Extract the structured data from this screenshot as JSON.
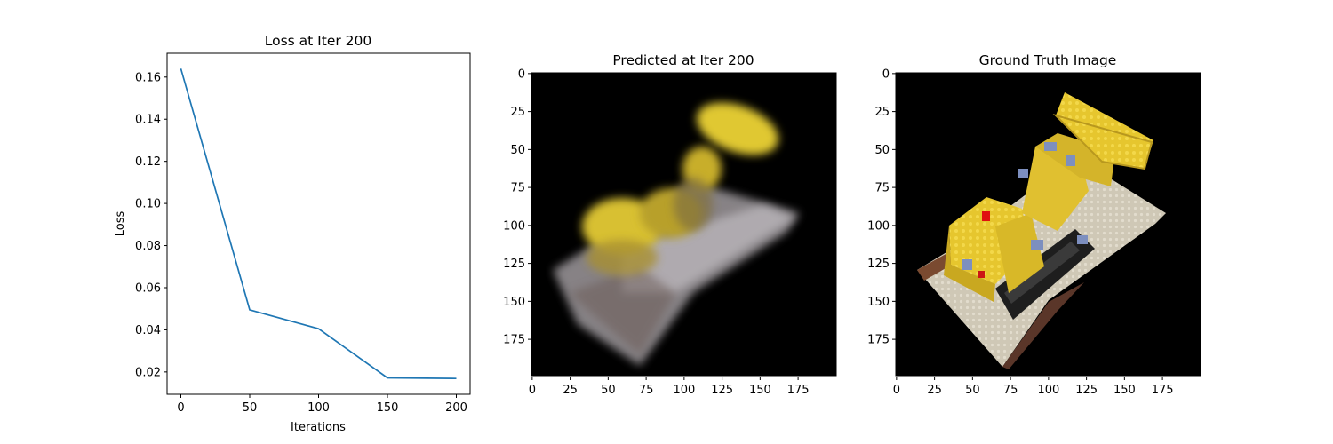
{
  "chart_data": [
    {
      "type": "line",
      "title": "Loss at Iter 200",
      "xlabel": "Iterations",
      "ylabel": "Loss",
      "x": [
        0,
        50,
        100,
        150,
        200
      ],
      "series": [
        {
          "values": [
            0.164,
            0.0495,
            0.0405,
            0.0172,
            0.0169
          ]
        }
      ],
      "xlim": [
        -10,
        210
      ],
      "ylim": [
        0.0094,
        0.1713
      ],
      "xticks": [
        "0",
        "50",
        "100",
        "150",
        "200"
      ],
      "yticks": [
        "0.02",
        "0.04",
        "0.06",
        "0.08",
        "0.10",
        "0.12",
        "0.14",
        "0.16"
      ],
      "line_color": "#1f77b4",
      "grid": false
    },
    {
      "type": "heatmap",
      "title": "Predicted at Iter 200",
      "description_visible": "blurry reconstruction of yellow bulldozer on grey baseplate, black background",
      "xlim": [
        0,
        200
      ],
      "ylim": [
        200,
        0
      ],
      "xticks": [
        "0",
        "25",
        "50",
        "75",
        "100",
        "125",
        "150",
        "175"
      ],
      "yticks": [
        "0",
        "25",
        "50",
        "75",
        "100",
        "125",
        "150",
        "175"
      ]
    },
    {
      "type": "heatmap",
      "title": "Ground Truth Image",
      "xlim": [
        0,
        200
      ],
      "ylim": [
        200,
        0
      ],
      "xticks": [
        "0",
        "25",
        "50",
        "75",
        "100",
        "125",
        "150",
        "175"
      ],
      "yticks": [
        "0",
        "25",
        "50",
        "75",
        "100",
        "125",
        "150",
        "175"
      ]
    }
  ],
  "colors": {
    "line": "#1f77b4",
    "image_bg": "#000000",
    "lego_yellow": "#e8c830",
    "baseplate": "#c9c2b0",
    "tread": "#202020",
    "brown_plate": "#7a4a30"
  }
}
